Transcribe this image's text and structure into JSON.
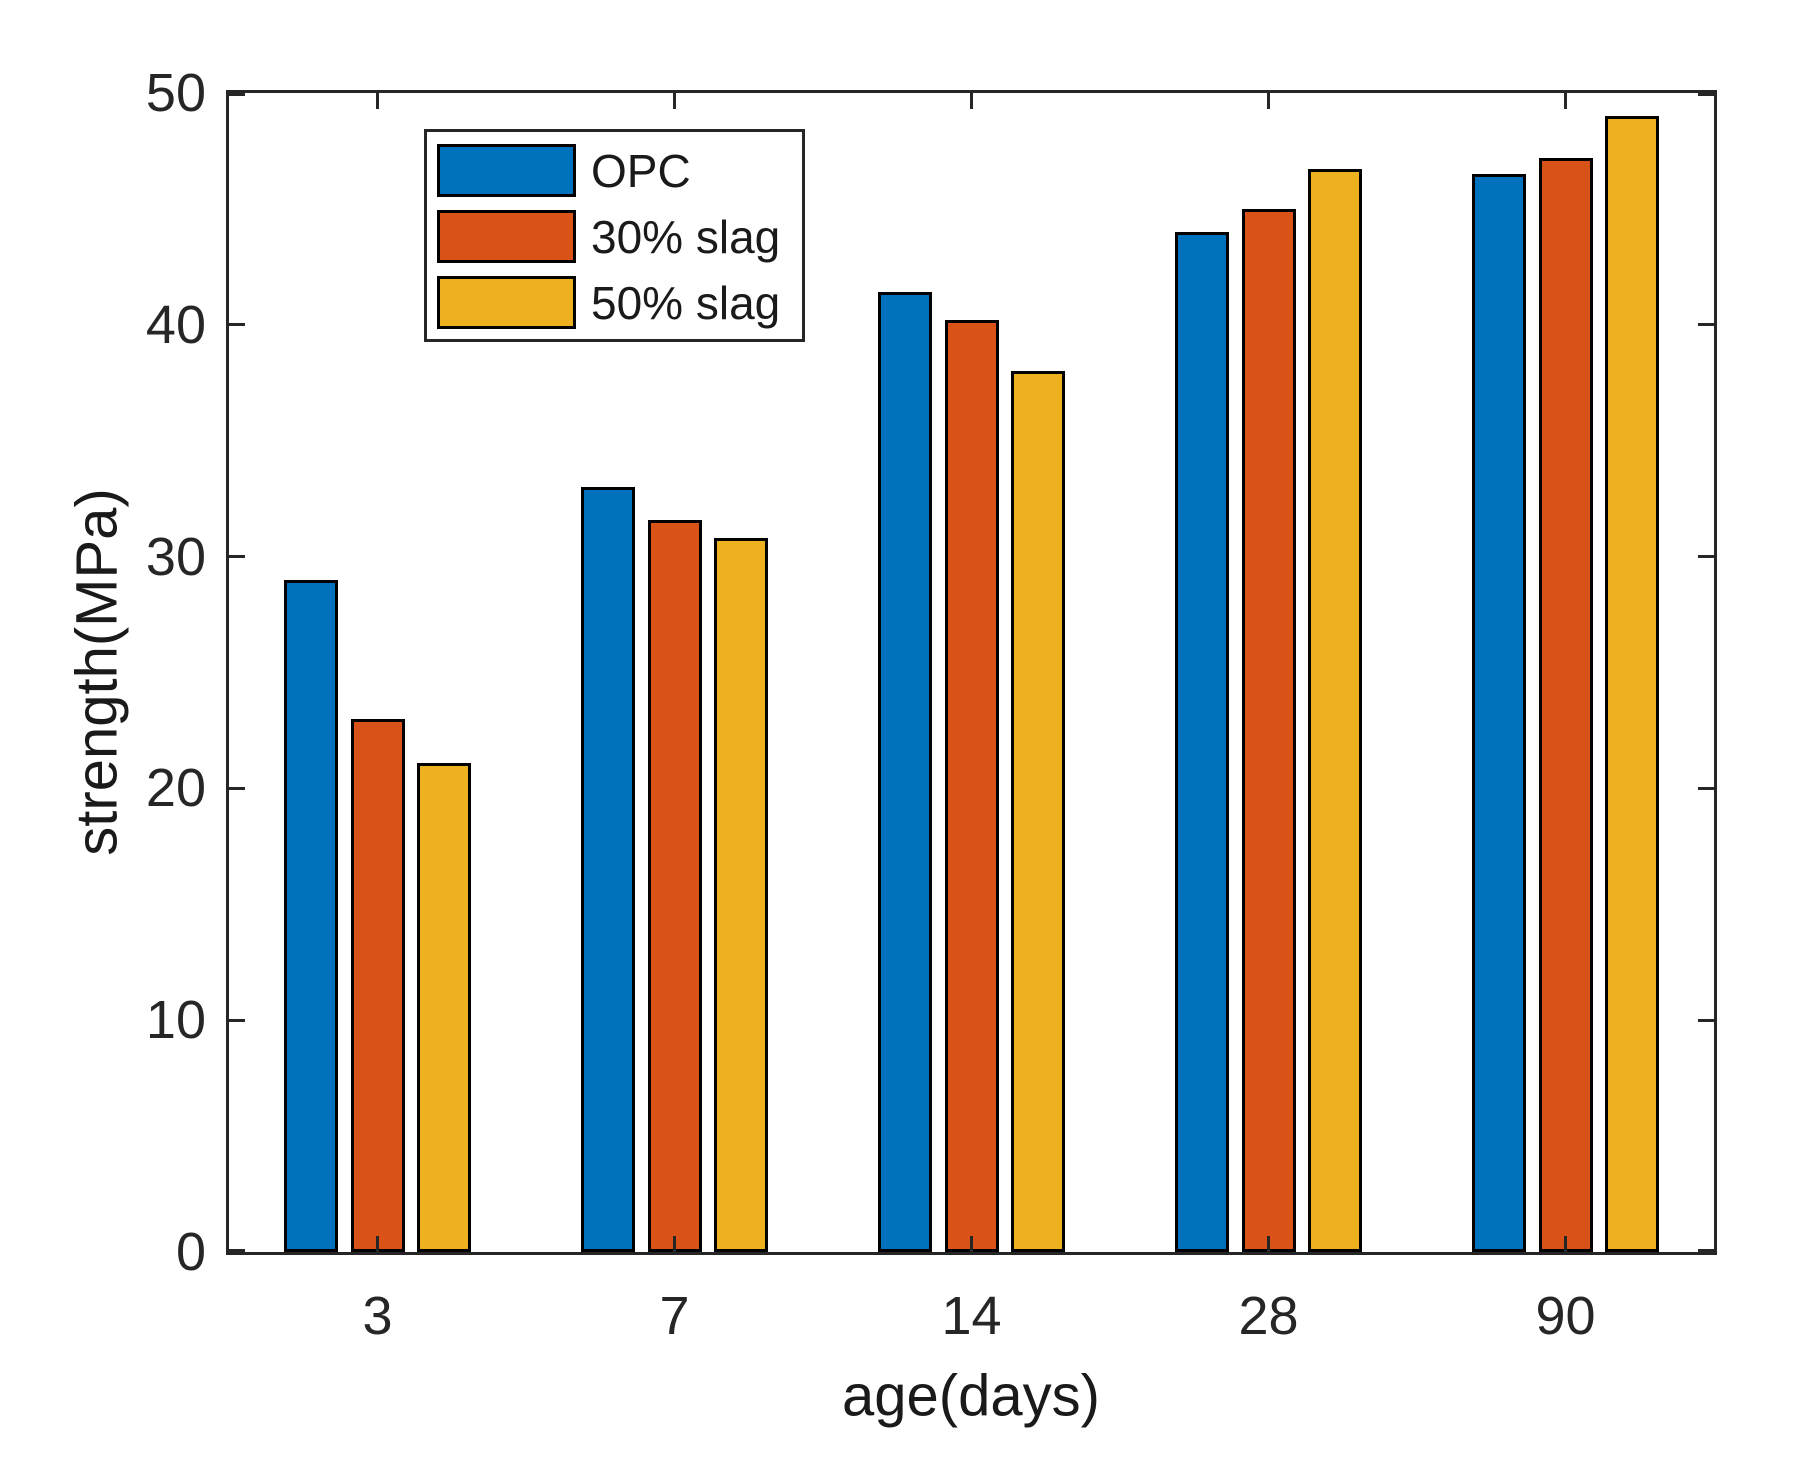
{
  "figure": {
    "background": "#ffffff",
    "axis_color": "#262626",
    "text_color": "#1a1a1a"
  },
  "chart_data": {
    "type": "bar",
    "title": "",
    "xlabel": "age(days)",
    "ylabel": "strength(MPa)",
    "categories": [
      "3",
      "7",
      "14",
      "28",
      "90"
    ],
    "series": [
      {
        "name": "OPC",
        "color": "#0072BD",
        "values": [
          29.0,
          33.0,
          41.4,
          44.0,
          46.5
        ]
      },
      {
        "name": "30% slag",
        "color": "#D95319",
        "values": [
          23.0,
          31.6,
          40.2,
          45.0,
          47.2
        ]
      },
      {
        "name": "50% slag",
        "color": "#EDB120",
        "values": [
          21.1,
          30.8,
          38.0,
          46.7,
          49.0
        ]
      }
    ],
    "ylim": [
      0,
      50
    ],
    "yticks": [
      0,
      10,
      20,
      30,
      40,
      50
    ],
    "bar_edge_color": "#000000",
    "legend_position": "top-left-inside",
    "grid": false
  }
}
